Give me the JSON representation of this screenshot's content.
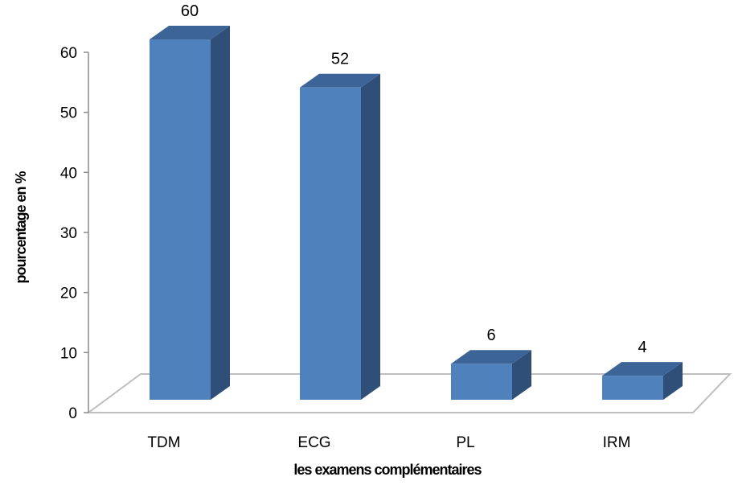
{
  "chart_data": {
    "type": "bar",
    "style": "3d-column",
    "categories": [
      "TDM",
      "ECG",
      "PL",
      "IRM"
    ],
    "values": [
      60,
      52,
      6,
      4
    ],
    "data_labels": [
      "60",
      "52",
      "6",
      "4"
    ],
    "xlabel": "les examens complémentaires",
    "ylabel": "pourcentage en %",
    "ylim": [
      0,
      60
    ],
    "yticks": [
      "0",
      "10",
      "20",
      "30",
      "40",
      "50",
      "60"
    ],
    "grid": false,
    "legend": "none",
    "colors": {
      "bar_front": "#4f81bd",
      "bar_side": "#2f4f78",
      "bar_top": "#3d6497",
      "floor": "#bfbfbf"
    }
  }
}
